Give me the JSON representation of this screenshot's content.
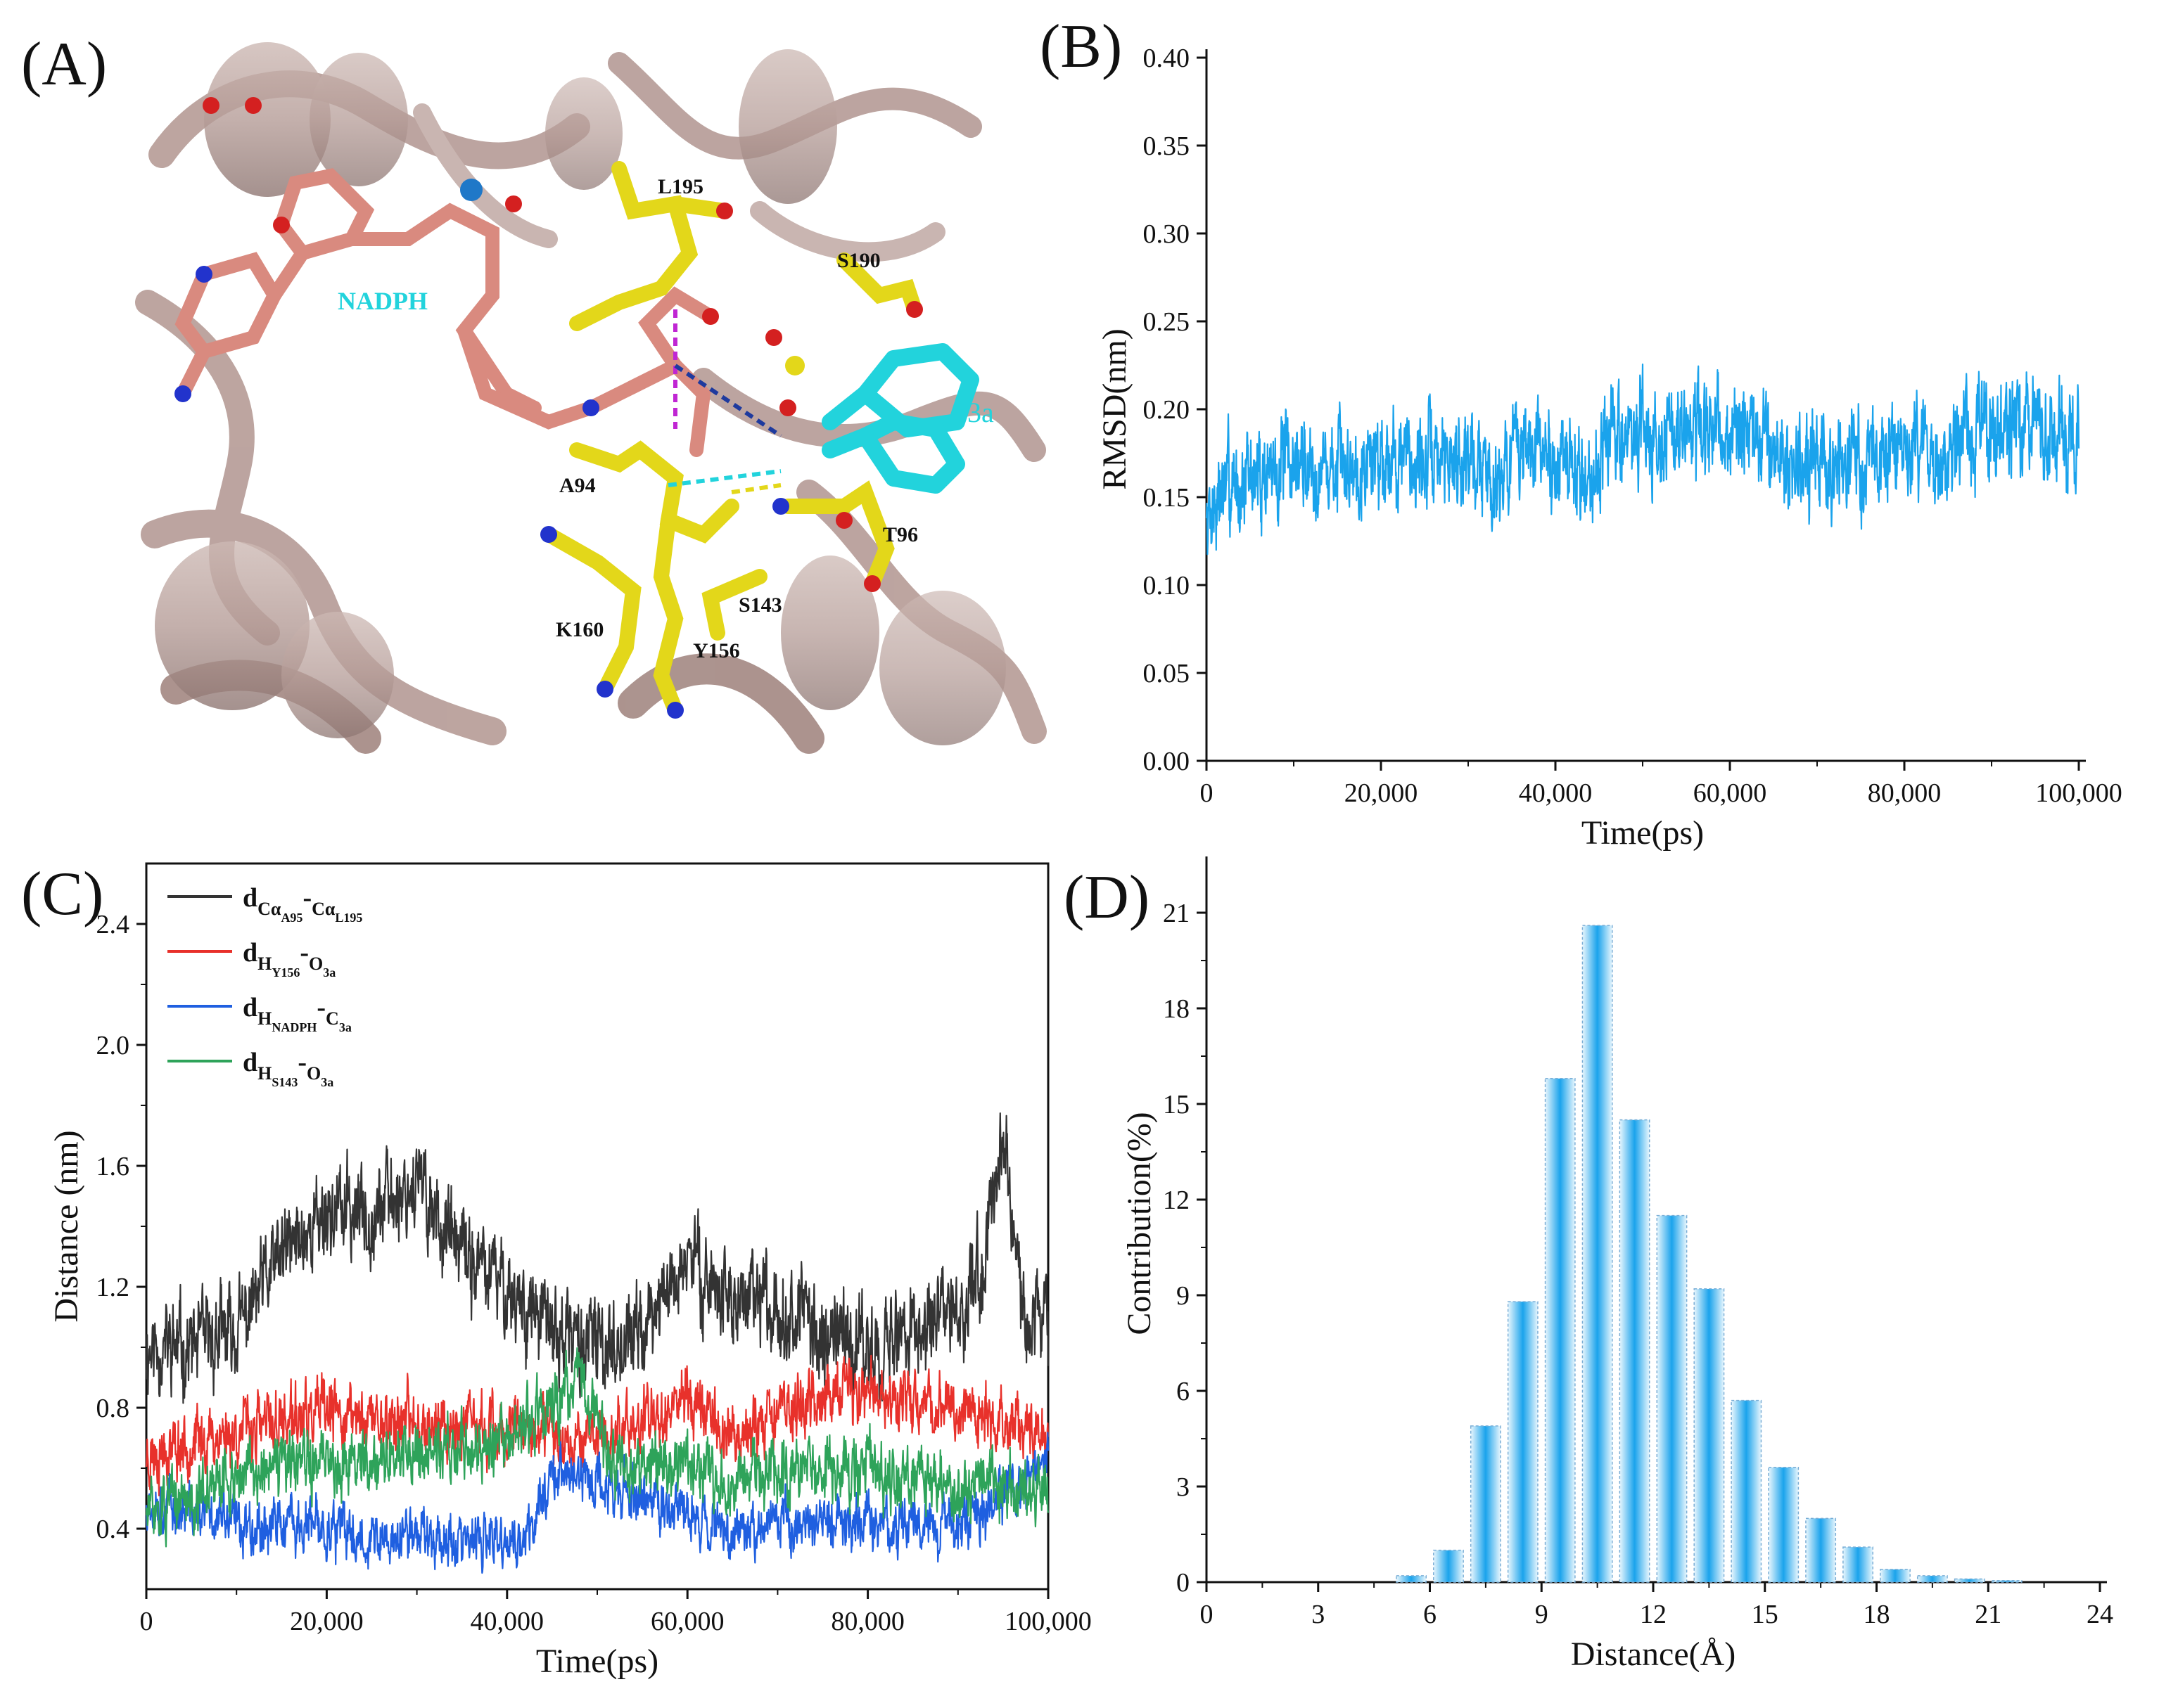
{
  "panels": {
    "A": {
      "label": "(A)",
      "colors": {
        "protein": "#b9a09b",
        "nadph": "#d98a7f",
        "residue": "#e3d71a",
        "substrate": "#22d3dc",
        "oxygen": "#d42020",
        "nitrogen": "#2233cc",
        "phosphorus": "#1f78c8"
      },
      "labels": {
        "nadph": "NADPH",
        "substrate": "3a",
        "residues": [
          "L195",
          "S190",
          "A94",
          "T96",
          "S143",
          "K160",
          "Y156"
        ]
      }
    },
    "B": {
      "label": "(B)"
    },
    "C": {
      "label": "(C)"
    },
    "D": {
      "label": "(D)"
    }
  },
  "chart_data": [
    {
      "panel": "B",
      "type": "line",
      "xlabel": "Time(ps)",
      "ylabel": "RMSD(nm)",
      "xlim": [
        0,
        100000
      ],
      "ylim": [
        0,
        0.4
      ],
      "xticks": [
        "0",
        "20,000",
        "40,000",
        "60,000",
        "80,000",
        "100,000"
      ],
      "yticks": [
        "0.00",
        "0.05",
        "0.10",
        "0.15",
        "0.20",
        "0.25",
        "0.30",
        "0.35",
        "0.40"
      ],
      "color": "#1aa3ec",
      "series": [
        {
          "x": [
            0,
            2000,
            5000,
            10000,
            15000,
            20000,
            25000,
            30000,
            33000,
            36000,
            40000,
            44000,
            46000,
            50000,
            55000,
            60000,
            64000,
            66000,
            70000,
            75000,
            80000,
            85000,
            90000,
            95000,
            100000
          ],
          "y": [
            0.14,
            0.155,
            0.16,
            0.17,
            0.165,
            0.175,
            0.17,
            0.175,
            0.16,
            0.18,
            0.17,
            0.16,
            0.185,
            0.185,
            0.185,
            0.185,
            0.185,
            0.17,
            0.165,
            0.17,
            0.175,
            0.175,
            0.19,
            0.185,
            0.185
          ],
          "noise": 0.018
        }
      ]
    },
    {
      "panel": "C",
      "type": "line",
      "xlabel": "Time(ps)",
      "ylabel": "Distance (nm)",
      "xlim": [
        0,
        100000
      ],
      "ylim": [
        0.2,
        2.6
      ],
      "xticks": [
        "0",
        "20,000",
        "40,000",
        "60,000",
        "80,000",
        "100,000"
      ],
      "yticks": [
        "0.4",
        "0.8",
        "1.2",
        "1.6",
        "2.0",
        "2.4"
      ],
      "legend_position": "top-left",
      "series": [
        {
          "legend": {
            "d": "d",
            "sub1": "Cα",
            "sub1sub": "A95",
            "dash": "-",
            "sub2": "Cα",
            "sub2sub": "L195"
          },
          "color": "#333333",
          "x": [
            0,
            5000,
            10000,
            15000,
            20000,
            25000,
            30000,
            35000,
            40000,
            45000,
            50000,
            55000,
            60000,
            65000,
            70000,
            75000,
            80000,
            85000,
            90000,
            93000,
            95000,
            97000,
            100000
          ],
          "y": [
            1.0,
            1.0,
            1.05,
            1.3,
            1.45,
            1.45,
            1.55,
            1.3,
            1.2,
            1.05,
            1.0,
            1.05,
            1.3,
            1.15,
            1.15,
            1.05,
            1.0,
            1.05,
            1.1,
            1.3,
            1.75,
            1.15,
            1.05
          ],
          "noise": 0.1
        },
        {
          "legend": {
            "d": "d",
            "sub1": "H",
            "sub1sub": "Y156",
            "dash": "-",
            "sub2": "O",
            "sub2sub": "3a"
          },
          "color": "#e8312b",
          "x": [
            0,
            10000,
            20000,
            30000,
            40000,
            50000,
            55000,
            60000,
            65000,
            70000,
            80000,
            90000,
            100000
          ],
          "y": [
            0.65,
            0.72,
            0.78,
            0.75,
            0.72,
            0.7,
            0.75,
            0.85,
            0.7,
            0.8,
            0.85,
            0.8,
            0.7
          ],
          "noise": 0.07
        },
        {
          "legend": {
            "d": "d",
            "sub1": "H",
            "sub1sub": "NADPH",
            "dash": "-",
            "sub2": "C",
            "sub2sub": "3a"
          },
          "color": "#1f5fe0",
          "x": [
            0,
            5000,
            10000,
            20000,
            27000,
            30000,
            35000,
            42000,
            45000,
            50000,
            55000,
            60000,
            65000,
            70000,
            80000,
            90000,
            100000
          ],
          "y": [
            0.5,
            0.45,
            0.42,
            0.4,
            0.35,
            0.4,
            0.35,
            0.35,
            0.6,
            0.55,
            0.5,
            0.45,
            0.4,
            0.42,
            0.42,
            0.42,
            0.6
          ],
          "noise": 0.06
        },
        {
          "legend": {
            "d": "d",
            "sub1": "H",
            "sub1sub": "S143",
            "dash": "-",
            "sub2": "O",
            "sub2sub": "3a"
          },
          "color": "#2ea35a",
          "x": [
            0,
            5000,
            10000,
            20000,
            30000,
            40000,
            45000,
            48000,
            52000,
            60000,
            65000,
            70000,
            80000,
            90000,
            100000
          ],
          "y": [
            0.45,
            0.5,
            0.58,
            0.62,
            0.65,
            0.68,
            0.8,
            0.9,
            0.6,
            0.6,
            0.55,
            0.6,
            0.58,
            0.55,
            0.52
          ],
          "noise": 0.07
        }
      ]
    },
    {
      "panel": "D",
      "type": "bar",
      "xlabel": "Distance(Å)",
      "ylabel": "Contribution(%)",
      "xlim": [
        0,
        24
      ],
      "ylim": [
        0,
        22.5
      ],
      "xticks": [
        "0",
        "3",
        "6",
        "9",
        "12",
        "15",
        "18",
        "21",
        "24"
      ],
      "yticks": [
        "0",
        "3",
        "6",
        "9",
        "12",
        "15",
        "18",
        "21"
      ],
      "bar_width": 0.8,
      "color": "#1aa3ec",
      "x": [
        5.5,
        6.5,
        7.5,
        8.5,
        9.5,
        10.5,
        11.5,
        12.5,
        13.5,
        14.5,
        15.5,
        16.5,
        17.5,
        18.5,
        19.5,
        20.5,
        21.5
      ],
      "values": [
        0.2,
        1.0,
        4.9,
        8.8,
        15.8,
        20.6,
        14.5,
        11.5,
        9.2,
        5.7,
        3.6,
        2.0,
        1.1,
        0.4,
        0.2,
        0.1,
        0.05
      ]
    }
  ]
}
